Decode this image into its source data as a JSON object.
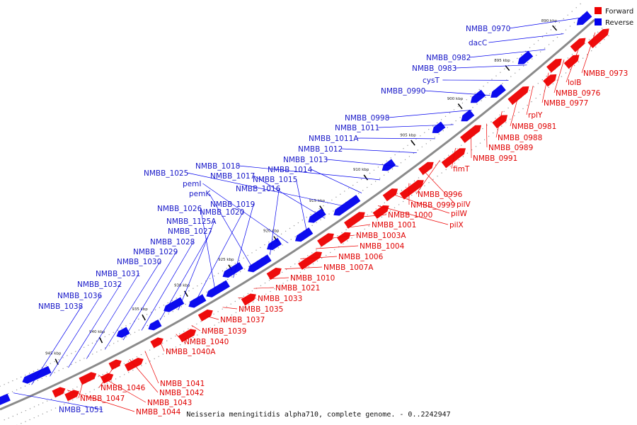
{
  "caption": "Neisseria meningitidis alpha710, complete genome. - 0..2242947",
  "legend": [
    {
      "label": "Forward",
      "color": "#ee0000"
    },
    {
      "label": "Reverse",
      "color": "#0000ee"
    }
  ],
  "colors": {
    "forward": "#ee0000",
    "reverse": "#0000ee",
    "backbone": "#808080"
  },
  "ticks": [
    {
      "label": "890 kbp"
    },
    {
      "label": "895 kbp"
    },
    {
      "label": "900 kbp"
    },
    {
      "label": "905 kbp"
    },
    {
      "label": "910 kbp"
    },
    {
      "label": "915 kbp"
    },
    {
      "label": "920 kbp"
    },
    {
      "label": "925 kbp"
    },
    {
      "label": "930 kbp"
    },
    {
      "label": "935 kbp"
    },
    {
      "label": "940 kbp"
    },
    {
      "label": "945 kbp"
    }
  ],
  "forward_labels": [
    "NMBB_0973",
    "lolB",
    "NMBB_0976",
    "NMBB_0977",
    "rplY",
    "NMBB_0981",
    "NMBB_0988",
    "NMBB_0989",
    "NMBB_0991",
    "fimT",
    "NMBB_0996",
    "pilV",
    "NMBB_0999",
    "pilW",
    "pilX",
    "NMBB_1000",
    "NMBB_1001",
    "NMBB_1003A",
    "NMBB_1004",
    "NMBB_1006",
    "NMBB_1007A",
    "NMBB_1010",
    "NMBB_1021",
    "NMBB_1033",
    "NMBB_1035",
    "NMBB_1037",
    "NMBB_1039",
    "NMBB_1040",
    "NMBB_1040A",
    "NMBB_1041",
    "NMBB_1042",
    "NMBB_1046",
    "NMBB_1043",
    "NMBB_1047",
    "NMBB_1044"
  ],
  "reverse_labels": [
    "NMBB_0970",
    "dacC",
    "NMBB_0982",
    "NMBB_0983",
    "cysT",
    "NMBB_0990",
    "NMBB_0998",
    "NMBB_1011",
    "NMBB_1011A",
    "NMBB_1012",
    "NMBB_1013",
    "NMBB_1018",
    "NMBB_1014",
    "NMBB_1025",
    "NMBB_1017",
    "NMBB_1015",
    "pemI",
    "NMBB_1016",
    "pemK",
    "NMBB_1019",
    "NMBB_1026",
    "NMBB_1020",
    "NMBB_1125A",
    "NMBB_1027",
    "NMBB_1028",
    "NMBB_1029",
    "NMBB_1030",
    "NMBB_1031",
    "NMBB_1032",
    "NMBB_1036",
    "NMBB_1038",
    "NMBB_1051"
  ]
}
